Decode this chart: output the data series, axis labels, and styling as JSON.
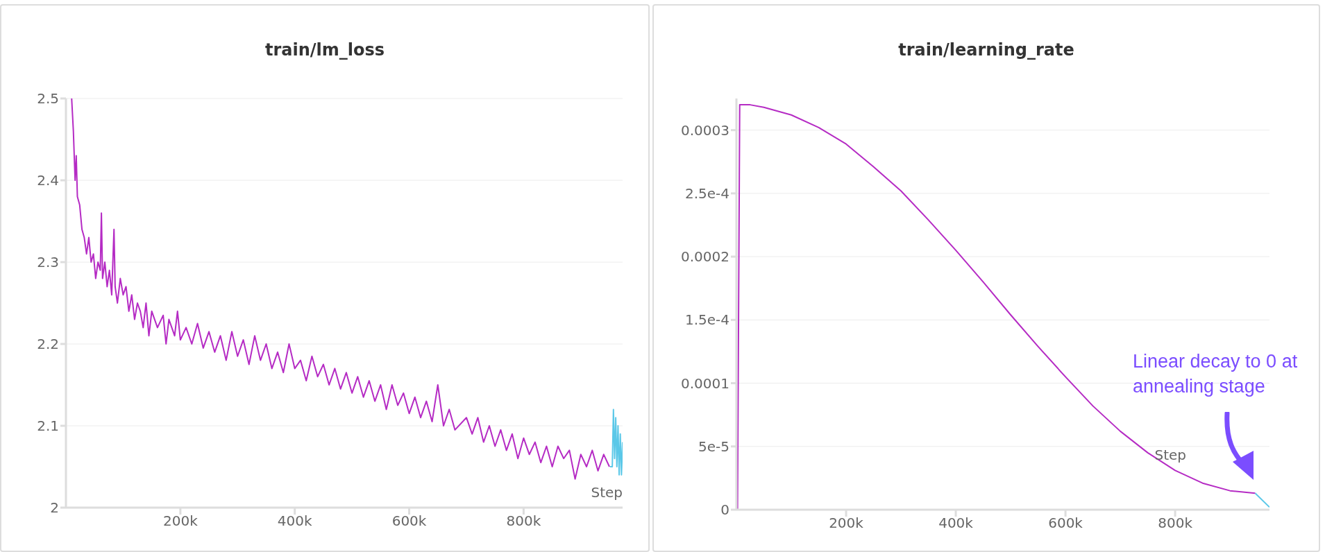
{
  "chart_data": [
    {
      "type": "line",
      "title": "train/lm_loss",
      "xlabel": "Step",
      "xlim": [
        0,
        973000
      ],
      "xticks": [
        {
          "value": 200000,
          "label": "200k"
        },
        {
          "value": 400000,
          "label": "400k"
        },
        {
          "value": 600000,
          "label": "600k"
        },
        {
          "value": 800000,
          "label": "800k"
        }
      ],
      "ylim": [
        2,
        2.5
      ],
      "yticks": [
        2,
        2.1,
        2.2,
        2.3,
        2.4,
        2.5
      ],
      "grid": "y",
      "series": [
        {
          "color": "#b52bc4",
          "x": [
            10000,
            13000,
            16000,
            18000,
            20000,
            24000,
            28000,
            32000,
            36000,
            40000,
            44000,
            48000,
            52000,
            56000,
            60000,
            62000,
            64000,
            68000,
            72000,
            76000,
            80000,
            84000,
            86000,
            90000,
            95000,
            100000,
            105000,
            110000,
            115000,
            120000,
            125000,
            130000,
            135000,
            140000,
            145000,
            150000,
            160000,
            170000,
            175000,
            180000,
            190000,
            195000,
            200000,
            210000,
            220000,
            230000,
            240000,
            250000,
            260000,
            270000,
            280000,
            290000,
            300000,
            310000,
            320000,
            330000,
            340000,
            350000,
            360000,
            370000,
            380000,
            390000,
            400000,
            410000,
            420000,
            430000,
            440000,
            450000,
            460000,
            470000,
            480000,
            490000,
            500000,
            510000,
            520000,
            530000,
            540000,
            550000,
            560000,
            570000,
            580000,
            590000,
            600000,
            610000,
            620000,
            630000,
            640000,
            650000,
            660000,
            670000,
            680000,
            700000,
            710000,
            720000,
            730000,
            740000,
            750000,
            760000,
            770000,
            780000,
            790000,
            800000,
            810000,
            820000,
            830000,
            840000,
            850000,
            860000,
            870000,
            880000,
            890000,
            900000,
            910000,
            920000,
            930000,
            940000,
            950000
          ],
          "values": [
            2.5,
            2.46,
            2.4,
            2.43,
            2.38,
            2.37,
            2.34,
            2.33,
            2.31,
            2.33,
            2.3,
            2.31,
            2.28,
            2.3,
            2.29,
            2.36,
            2.28,
            2.3,
            2.27,
            2.29,
            2.26,
            2.34,
            2.27,
            2.25,
            2.28,
            2.26,
            2.27,
            2.24,
            2.26,
            2.23,
            2.25,
            2.24,
            2.22,
            2.25,
            2.21,
            2.24,
            2.22,
            2.235,
            2.2,
            2.23,
            2.21,
            2.24,
            2.205,
            2.22,
            2.2,
            2.225,
            2.195,
            2.215,
            2.19,
            2.21,
            2.18,
            2.215,
            2.185,
            2.205,
            2.175,
            2.21,
            2.18,
            2.2,
            2.17,
            2.19,
            2.165,
            2.2,
            2.17,
            2.18,
            2.155,
            2.185,
            2.16,
            2.175,
            2.15,
            2.17,
            2.145,
            2.165,
            2.14,
            2.16,
            2.135,
            2.155,
            2.13,
            2.15,
            2.12,
            2.15,
            2.125,
            2.14,
            2.115,
            2.135,
            2.11,
            2.13,
            2.105,
            2.15,
            2.1,
            2.12,
            2.095,
            2.11,
            2.09,
            2.11,
            2.08,
            2.1,
            2.075,
            2.095,
            2.07,
            2.09,
            2.06,
            2.085,
            2.065,
            2.08,
            2.055,
            2.075,
            2.05,
            2.075,
            2.06,
            2.07,
            2.035,
            2.065,
            2.05,
            2.07,
            2.045,
            2.065,
            2.05
          ]
        },
        {
          "color": "#5bc8e8",
          "x": [
            951000,
            955000,
            957000,
            959000,
            961000,
            963000,
            965000,
            967000,
            969000,
            971000,
            973000
          ],
          "values": [
            2.05,
            2.05,
            2.12,
            2.06,
            2.11,
            2.05,
            2.1,
            2.04,
            2.09,
            2.04,
            2.08
          ]
        }
      ]
    },
    {
      "type": "line",
      "title": "train/learning_rate",
      "xlabel": "Step",
      "xlim": [
        0,
        972000
      ],
      "xticks": [
        {
          "value": 200000,
          "label": "200k"
        },
        {
          "value": 400000,
          "label": "400k"
        },
        {
          "value": 600000,
          "label": "600k"
        },
        {
          "value": 800000,
          "label": "800k"
        }
      ],
      "ylim": [
        0,
        0.000325
      ],
      "yticks": [
        0,
        {
          "value": 5e-05,
          "label": "5e-5"
        },
        0.0001,
        {
          "value": 0.00015,
          "label": "1.5e-4"
        },
        0.0002,
        {
          "value": 0.00025,
          "label": "2.5e-4"
        },
        0.0003
      ],
      "grid": "y",
      "annotations": [
        "Linear decay to 0 at annealing stage"
      ],
      "series": [
        {
          "color": "#b52bc4",
          "x": [
            2000,
            6000,
            25000,
            50000,
            100000,
            150000,
            200000,
            250000,
            300000,
            350000,
            400000,
            450000,
            500000,
            550000,
            600000,
            650000,
            700000,
            750000,
            800000,
            850000,
            900000,
            946000
          ],
          "values": [
            0,
            0.00032,
            0.00032,
            0.000318,
            0.000312,
            0.000302,
            0.000289,
            0.000271,
            0.000252,
            0.000229,
            0.000205,
            0.00018,
            0.000154,
            0.000129,
            0.000105,
            8.2e-05,
            6.2e-05,
            4.5e-05,
            3.1e-05,
            2.1e-05,
            1.5e-05,
            1.3e-05
          ]
        },
        {
          "color": "#5bc8e8",
          "x": [
            946000,
            972000
          ],
          "values": [
            1.3e-05,
            2e-06
          ]
        }
      ]
    }
  ]
}
